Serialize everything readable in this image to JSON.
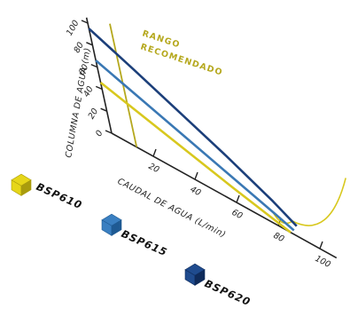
{
  "chart_data": {
    "type": "line",
    "xlabel": "CAUDAL DE AGUA (L/min)",
    "ylabel": "COLUMNA DE AGUA (m)",
    "x_ticks": [
      "20",
      "40",
      "60",
      "80",
      "100"
    ],
    "y_ticks": [
      "0",
      "20",
      "40",
      "60",
      "80",
      "100"
    ],
    "xlim": [
      0,
      100
    ],
    "ylim": [
      0,
      100
    ],
    "series": [
      {
        "name": "BSP620",
        "color": "#1c3f7a",
        "points": [
          [
            0,
            95
          ],
          [
            20,
            78
          ],
          [
            40,
            60
          ],
          [
            60,
            42
          ],
          [
            80,
            22
          ],
          [
            90,
            10
          ]
        ]
      },
      {
        "name": "BSP615",
        "color": "#3a78b4",
        "points": [
          [
            0,
            66
          ],
          [
            20,
            52
          ],
          [
            40,
            38
          ],
          [
            60,
            24
          ],
          [
            80,
            10
          ],
          [
            88,
            4
          ]
        ]
      },
      {
        "name": "BSP610",
        "color": "#d8c81e",
        "points": [
          [
            0,
            46
          ],
          [
            20,
            35
          ],
          [
            40,
            24
          ],
          [
            60,
            13
          ],
          [
            80,
            3
          ],
          [
            86,
            0
          ]
        ]
      }
    ],
    "annotation": {
      "lines": [
        "RANGO",
        "RECOMENDADO"
      ],
      "x": 12,
      "color": "#b5a81e"
    }
  },
  "legend": [
    {
      "label": "BSP610",
      "color": "#e6d619",
      "dark": "#a99c0d"
    },
    {
      "label": "BSP615",
      "color": "#3a7fc1",
      "dark": "#1f5a93"
    },
    {
      "label": "BSP620",
      "color": "#1f4b8e",
      "dark": "#0f2b5a"
    }
  ]
}
